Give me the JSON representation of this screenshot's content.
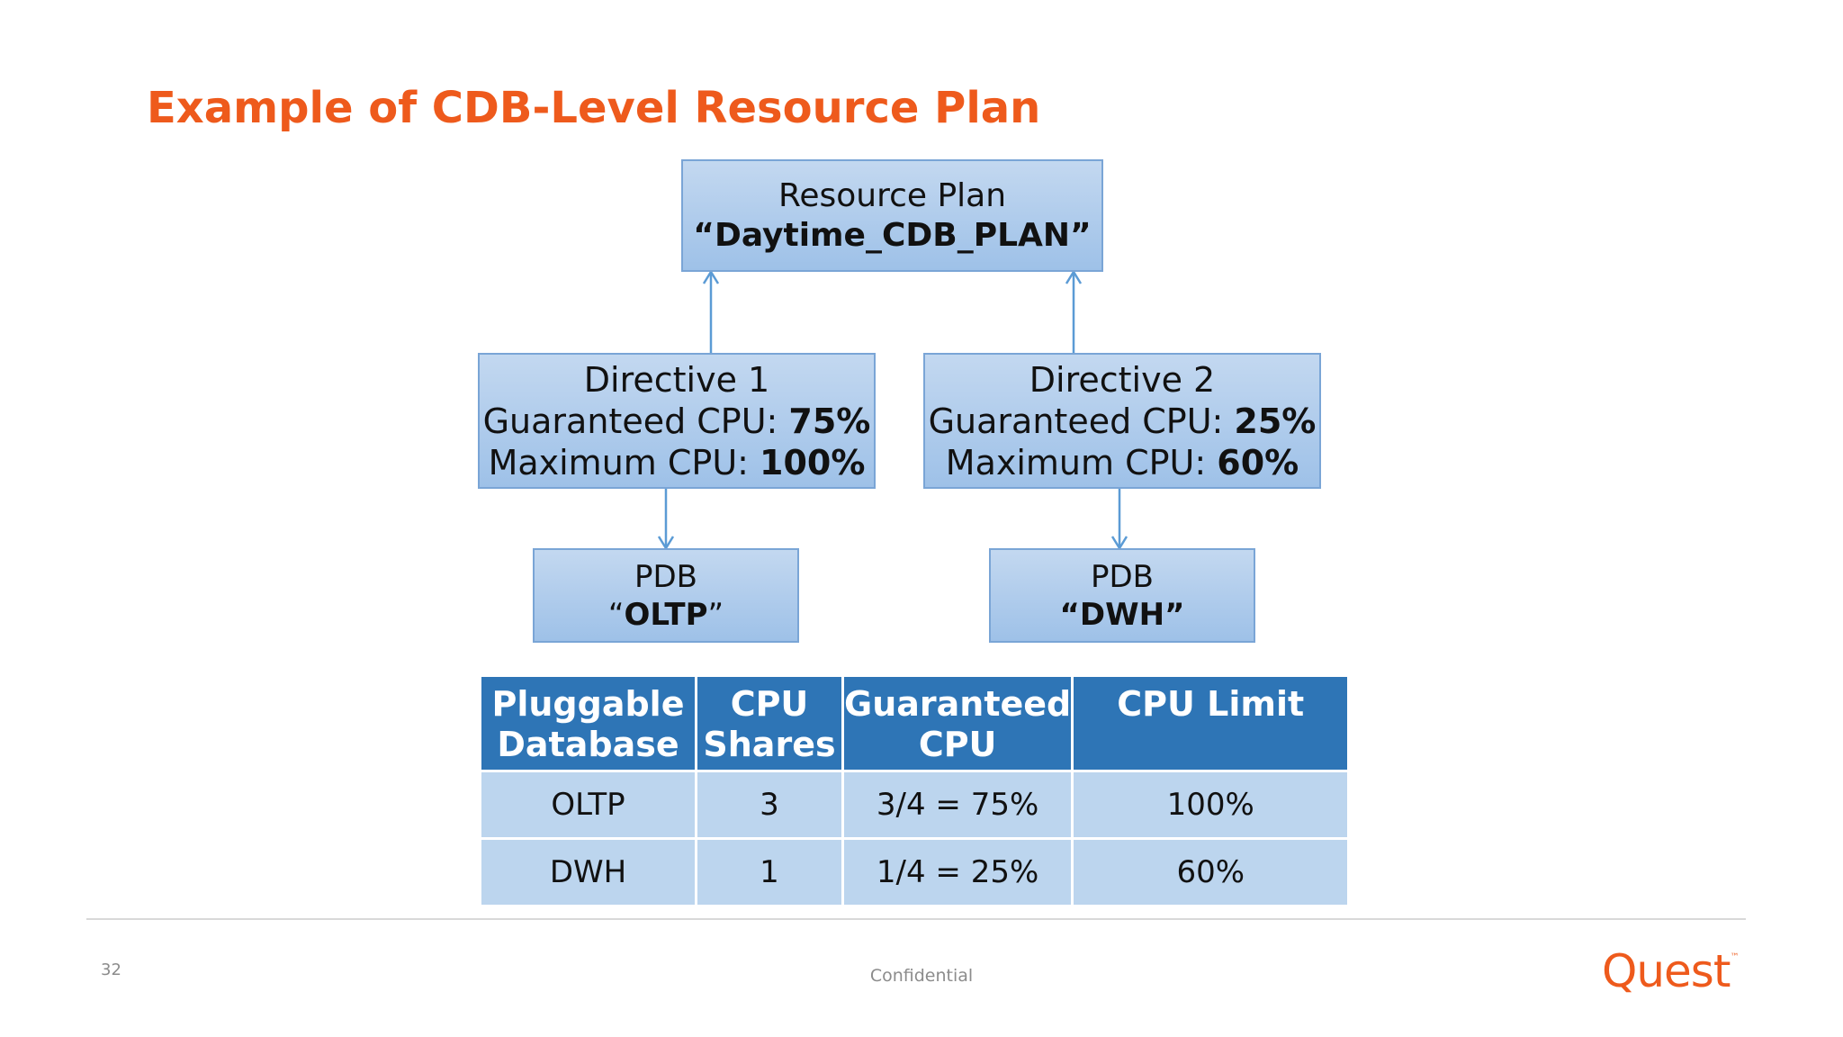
{
  "slide": {
    "title": "Example of CDB-Level Resource Plan",
    "page_number": "32",
    "footer": "Confidential",
    "logo_text": "Quest",
    "accent_color": "#ee5a1c",
    "box_color": "#9ec1e8",
    "header_color": "#2e75b6",
    "cell_color": "#bcd5ee"
  },
  "diagram": {
    "plan": {
      "line1": "Resource Plan",
      "line2": "“Daytime_CDB_PLAN”"
    },
    "directives": [
      {
        "title": "Directive 1",
        "guaranteed_label": "Guaranteed CPU: ",
        "guaranteed_value": "75%",
        "max_label": "Maximum CPU: ",
        "max_value": "100%"
      },
      {
        "title": "Directive 2",
        "guaranteed_label": "Guaranteed CPU: ",
        "guaranteed_value": "25%",
        "max_label": "Maximum CPU: ",
        "max_value": "60%"
      }
    ],
    "pdbs": [
      {
        "label": "PDB",
        "open_quote": "“",
        "name": "OLTP",
        "close_quote": "”"
      },
      {
        "label": "PDB",
        "open_quote": "“",
        "name": "DWH",
        "close_quote": "”"
      }
    ]
  },
  "table": {
    "headers": [
      {
        "line1": "Pluggable",
        "line2": "Database"
      },
      {
        "line1": "CPU",
        "line2": "Shares"
      },
      {
        "line1": "Guaranteed",
        "line2": "CPU"
      },
      {
        "line1": "CPU Limit",
        "line2": ""
      }
    ],
    "rows": [
      [
        "OLTP",
        "3",
        "3/4 = 75%",
        "100%"
      ],
      [
        "DWH",
        "1",
        "1/4 = 25%",
        "60%"
      ]
    ]
  }
}
